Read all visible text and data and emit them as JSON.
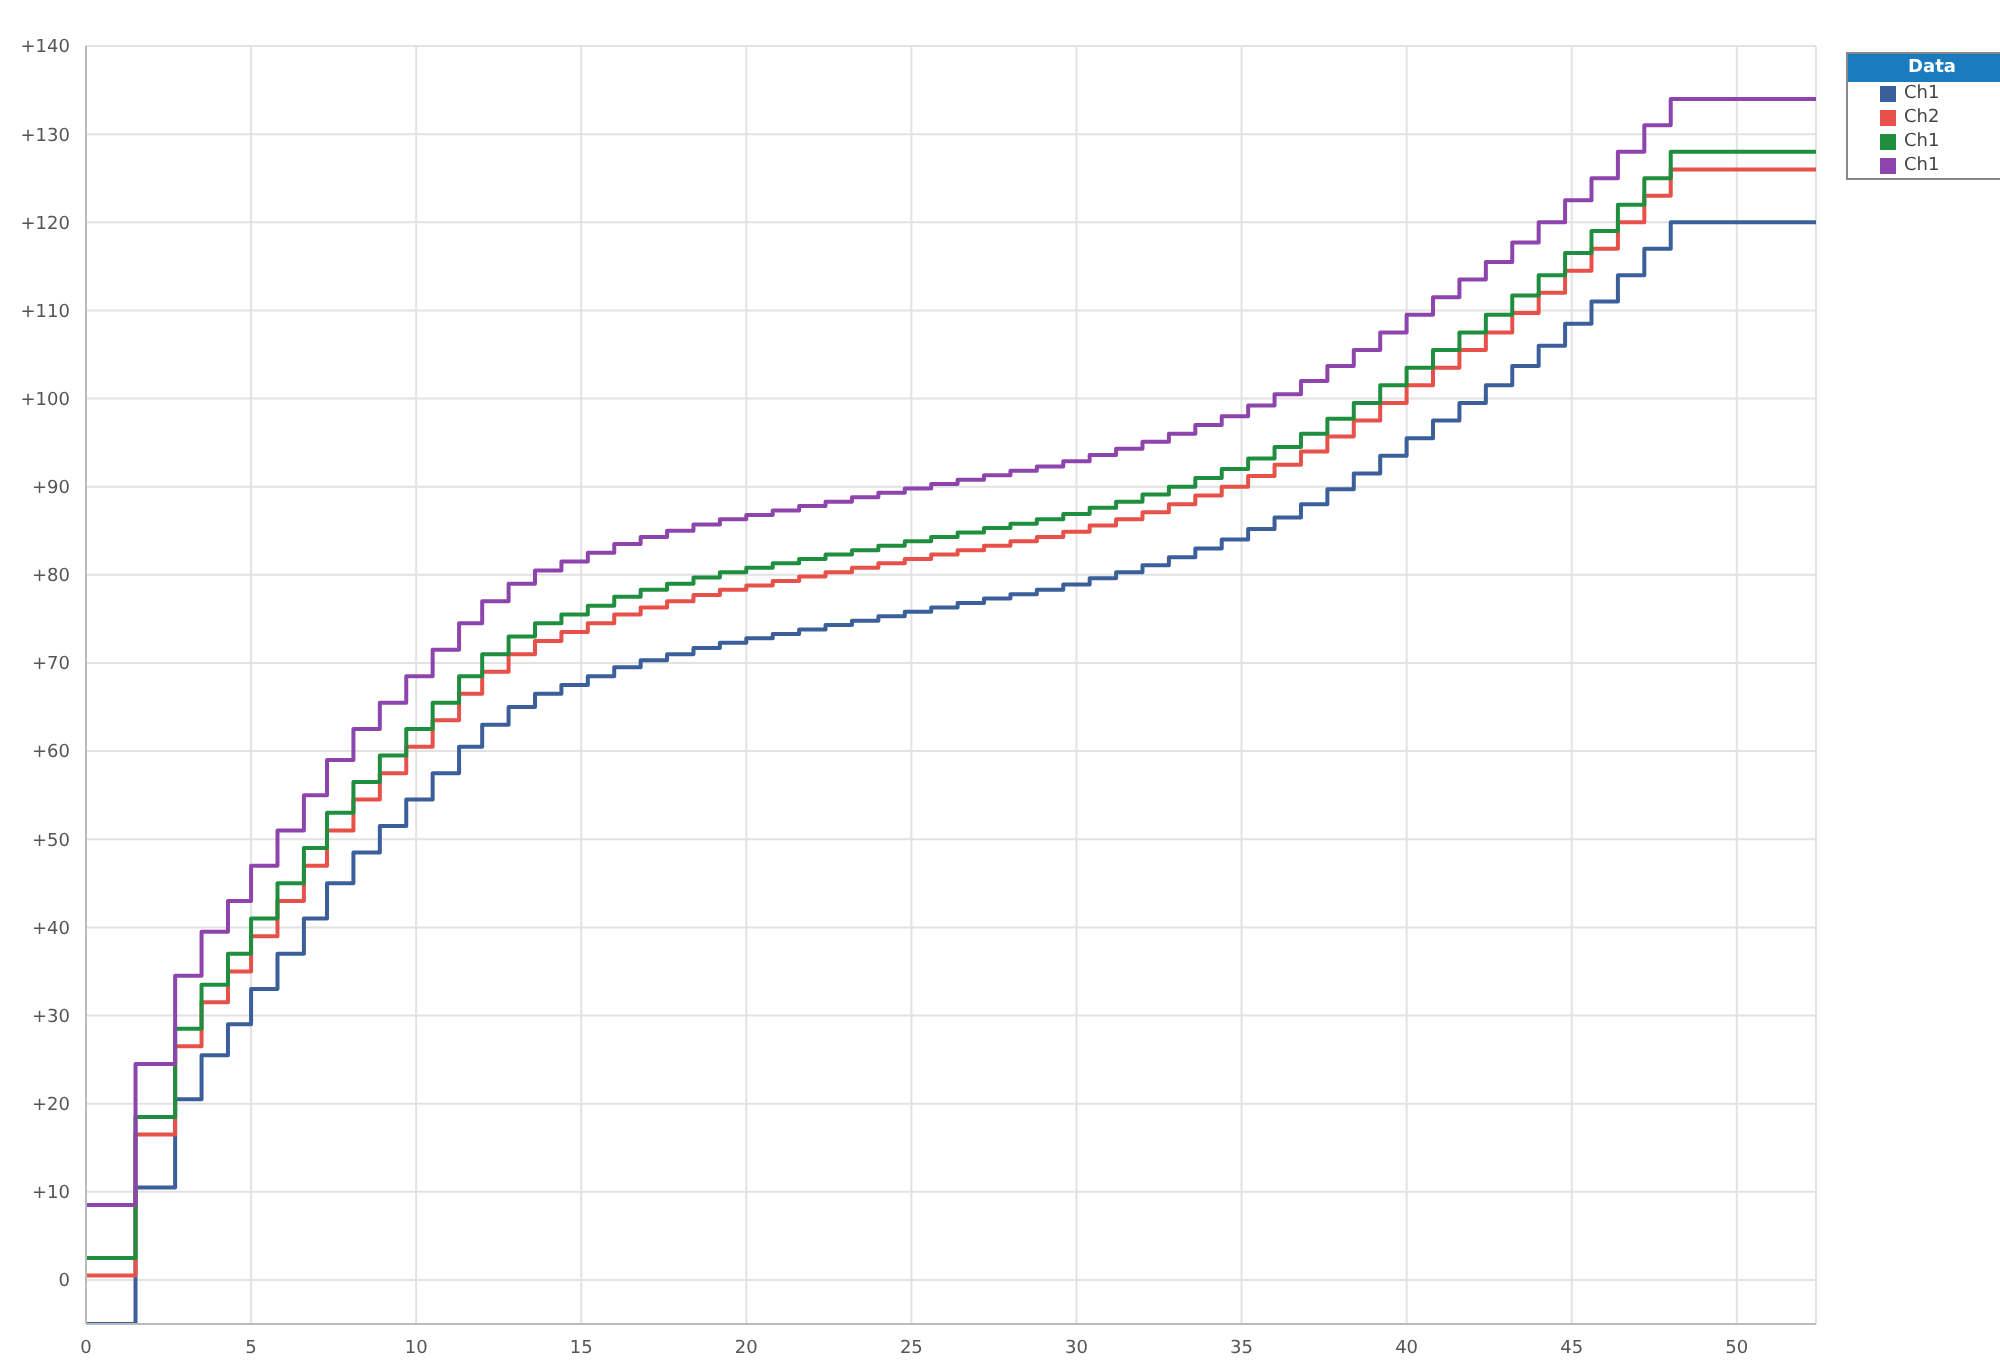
{
  "chart_data": {
    "type": "step",
    "legend_title": "Data",
    "legend": "top right",
    "grid": true,
    "marker": "none",
    "line_style": "solid",
    "xlim": [
      0,
      52.4
    ],
    "xticks": [
      0,
      5,
      10,
      15,
      20,
      25,
      30,
      35,
      40,
      45,
      50
    ],
    "ylim": [
      -5,
      140
    ],
    "yticks": [
      {
        "value": 0,
        "label": "0"
      },
      {
        "value": 10,
        "label": "+10"
      },
      {
        "value": 20,
        "label": "+20"
      },
      {
        "value": 30,
        "label": "+30"
      },
      {
        "value": 40,
        "label": "+40"
      },
      {
        "value": 50,
        "label": "+50"
      },
      {
        "value": 60,
        "label": "+60"
      },
      {
        "value": 70,
        "label": "+70"
      },
      {
        "value": 80,
        "label": "+80"
      },
      {
        "value": 90,
        "label": "+90"
      },
      {
        "value": 100,
        "label": "+100"
      },
      {
        "value": 110,
        "label": "+110"
      },
      {
        "value": 120,
        "label": "+120"
      },
      {
        "value": 130,
        "label": "+130"
      },
      {
        "value": 140,
        "label": "+140"
      }
    ],
    "x": [
      0,
      1.5,
      2.7,
      3.5,
      4.3,
      5.0,
      5.8,
      6.6,
      7.3,
      8.1,
      8.9,
      9.7,
      10.5,
      11.3,
      12.0,
      12.8,
      13.6,
      14.4,
      15.2,
      16.0,
      16.8,
      17.6,
      18.4,
      19.2,
      20.0,
      20.8,
      21.6,
      22.4,
      23.2,
      24.0,
      24.8,
      25.6,
      26.4,
      27.2,
      28.0,
      28.8,
      29.6,
      30.4,
      31.2,
      32.0,
      32.8,
      33.6,
      34.4,
      35.2,
      36.0,
      36.8,
      37.6,
      38.4,
      39.2,
      40.0,
      40.8,
      41.6,
      42.4,
      43.2,
      44.0,
      44.8,
      45.6,
      46.4,
      47.2,
      48.0,
      52.4
    ],
    "series": [
      {
        "name": "Ch1",
        "color": "#3a5f9a",
        "values": [
          -5,
          10.5,
          20.5,
          25.5,
          29,
          33,
          37,
          41,
          45,
          48.5,
          51.5,
          54.5,
          57.5,
          60.5,
          63,
          65,
          66.5,
          67.5,
          68.5,
          69.5,
          70.3,
          71,
          71.7,
          72.3,
          72.8,
          73.3,
          73.8,
          74.3,
          74.8,
          75.3,
          75.8,
          76.3,
          76.8,
          77.3,
          77.8,
          78.3,
          78.9,
          79.6,
          80.3,
          81.1,
          82,
          83,
          84,
          85.2,
          86.5,
          88,
          89.7,
          91.5,
          93.5,
          95.5,
          97.5,
          99.5,
          101.5,
          103.7,
          106,
          108.5,
          111,
          114,
          117,
          120,
          120
        ]
      },
      {
        "name": "Ch2",
        "color": "#e8504a",
        "values": [
          0.5,
          16.5,
          26.5,
          31.5,
          35,
          39,
          43,
          47,
          51,
          54.5,
          57.5,
          60.5,
          63.5,
          66.5,
          69,
          71,
          72.5,
          73.5,
          74.5,
          75.5,
          76.3,
          77,
          77.7,
          78.3,
          78.8,
          79.3,
          79.8,
          80.3,
          80.8,
          81.3,
          81.8,
          82.3,
          82.8,
          83.3,
          83.8,
          84.3,
          84.9,
          85.6,
          86.3,
          87.1,
          88,
          89,
          90,
          91.2,
          92.5,
          94,
          95.7,
          97.5,
          99.5,
          101.5,
          103.5,
          105.5,
          107.5,
          109.7,
          112,
          114.5,
          117,
          120,
          123,
          126,
          126
        ]
      },
      {
        "name": "Ch1",
        "color": "#1f8f3f",
        "values": [
          2.5,
          18.5,
          28.5,
          33.5,
          37,
          41,
          45,
          49,
          53,
          56.5,
          59.5,
          62.5,
          65.5,
          68.5,
          71,
          73,
          74.5,
          75.5,
          76.5,
          77.5,
          78.3,
          79,
          79.7,
          80.3,
          80.8,
          81.3,
          81.8,
          82.3,
          82.8,
          83.3,
          83.8,
          84.3,
          84.8,
          85.3,
          85.8,
          86.3,
          86.9,
          87.6,
          88.3,
          89.1,
          90,
          91,
          92,
          93.2,
          94.5,
          96,
          97.7,
          99.5,
          101.5,
          103.5,
          105.5,
          107.5,
          109.5,
          111.7,
          114,
          116.5,
          119,
          122,
          125,
          128,
          128
        ]
      },
      {
        "name": "Ch1",
        "color": "#8e44ad",
        "values": [
          8.5,
          24.5,
          34.5,
          39.5,
          43,
          47,
          51,
          55,
          59,
          62.5,
          65.5,
          68.5,
          71.5,
          74.5,
          77,
          79,
          80.5,
          81.5,
          82.5,
          83.5,
          84.3,
          85,
          85.7,
          86.3,
          86.8,
          87.3,
          87.8,
          88.3,
          88.8,
          89.3,
          89.8,
          90.3,
          90.8,
          91.3,
          91.8,
          92.3,
          92.9,
          93.6,
          94.3,
          95.1,
          96,
          97,
          98,
          99.2,
          100.5,
          102,
          103.7,
          105.5,
          107.5,
          109.5,
          111.5,
          113.5,
          115.5,
          117.7,
          120,
          122.5,
          125,
          128,
          131,
          134,
          134
        ]
      }
    ]
  }
}
